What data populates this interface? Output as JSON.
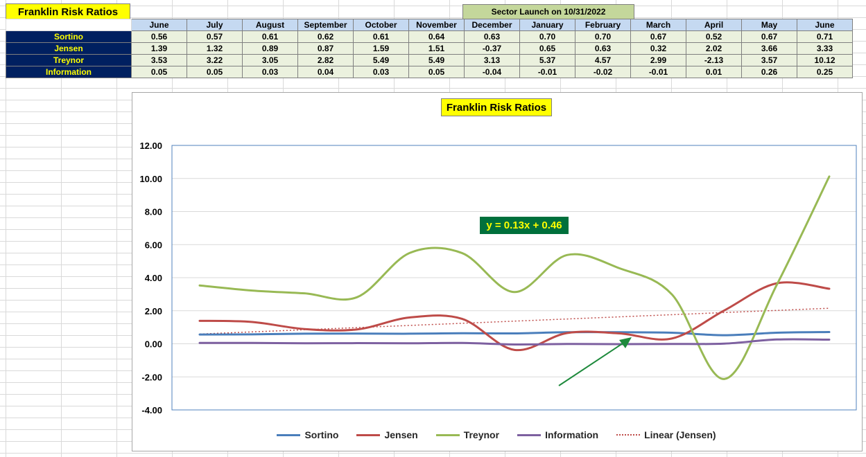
{
  "sheet": {
    "title": "Franklin Risk Ratios",
    "launch_note": "Sector Launch on 10/31/2022",
    "months": [
      "June",
      "July",
      "August",
      "September",
      "October",
      "November",
      "December",
      "January",
      "February",
      "March",
      "April",
      "May",
      "June"
    ],
    "rows": [
      {
        "label": "Sortino",
        "values": [
          "0.56",
          "0.57",
          "0.61",
          "0.62",
          "0.61",
          "0.64",
          "0.63",
          "0.70",
          "0.70",
          "0.67",
          "0.52",
          "0.67",
          "0.71"
        ]
      },
      {
        "label": "Jensen",
        "values": [
          "1.39",
          "1.32",
          "0.89",
          "0.87",
          "1.59",
          "1.51",
          "-0.37",
          "0.65",
          "0.63",
          "0.32",
          "2.02",
          "3.66",
          "3.33"
        ]
      },
      {
        "label": "Treynor",
        "values": [
          "3.53",
          "3.22",
          "3.05",
          "2.82",
          "5.49",
          "5.49",
          "3.13",
          "5.37",
          "4.57",
          "2.99",
          "-2.13",
          "3.57",
          "10.12"
        ]
      },
      {
        "label": "Information",
        "values": [
          "0.05",
          "0.05",
          "0.03",
          "0.04",
          "0.03",
          "0.05",
          "-0.04",
          "-0.01",
          "-0.02",
          "-0.01",
          "0.01",
          "0.26",
          "0.25"
        ]
      }
    ]
  },
  "chart_data": {
    "type": "line",
    "title": "Franklin Risk Ratios",
    "categories": [
      "June",
      "July",
      "August",
      "September",
      "October",
      "November",
      "December",
      "January",
      "February",
      "March",
      "April",
      "May",
      "June"
    ],
    "series": [
      {
        "name": "Sortino",
        "color": "#4a7ebb",
        "values": [
          0.56,
          0.57,
          0.61,
          0.62,
          0.61,
          0.64,
          0.63,
          0.7,
          0.7,
          0.67,
          0.52,
          0.67,
          0.71
        ]
      },
      {
        "name": "Jensen",
        "color": "#be4b48",
        "values": [
          1.39,
          1.32,
          0.89,
          0.87,
          1.59,
          1.51,
          -0.37,
          0.65,
          0.63,
          0.32,
          2.02,
          3.66,
          3.33
        ]
      },
      {
        "name": "Treynor",
        "color": "#98b954",
        "values": [
          3.53,
          3.22,
          3.05,
          2.82,
          5.49,
          5.49,
          3.13,
          5.37,
          4.57,
          2.99,
          -2.13,
          3.57,
          10.12
        ]
      },
      {
        "name": "Information",
        "color": "#7d60a0",
        "values": [
          0.05,
          0.05,
          0.03,
          0.04,
          0.03,
          0.05,
          -0.04,
          -0.01,
          -0.02,
          -0.01,
          0.01,
          0.26,
          0.25
        ]
      }
    ],
    "trendline": {
      "name": "Linear (Jensen)",
      "color": "#be4b48",
      "slope": 0.13,
      "intercept": 0.46,
      "style": "dotted"
    },
    "equation_label": "y = 0.13x + 0.46",
    "yticks": [
      "12.00",
      "10.00",
      "8.00",
      "6.00",
      "4.00",
      "2.00",
      "0.00",
      "-2.00",
      "-4.00"
    ],
    "ylim": [
      -4,
      12
    ],
    "grid": true,
    "legend_position": "bottom",
    "arrow_color": "#1e8a3c",
    "smooth": true
  }
}
